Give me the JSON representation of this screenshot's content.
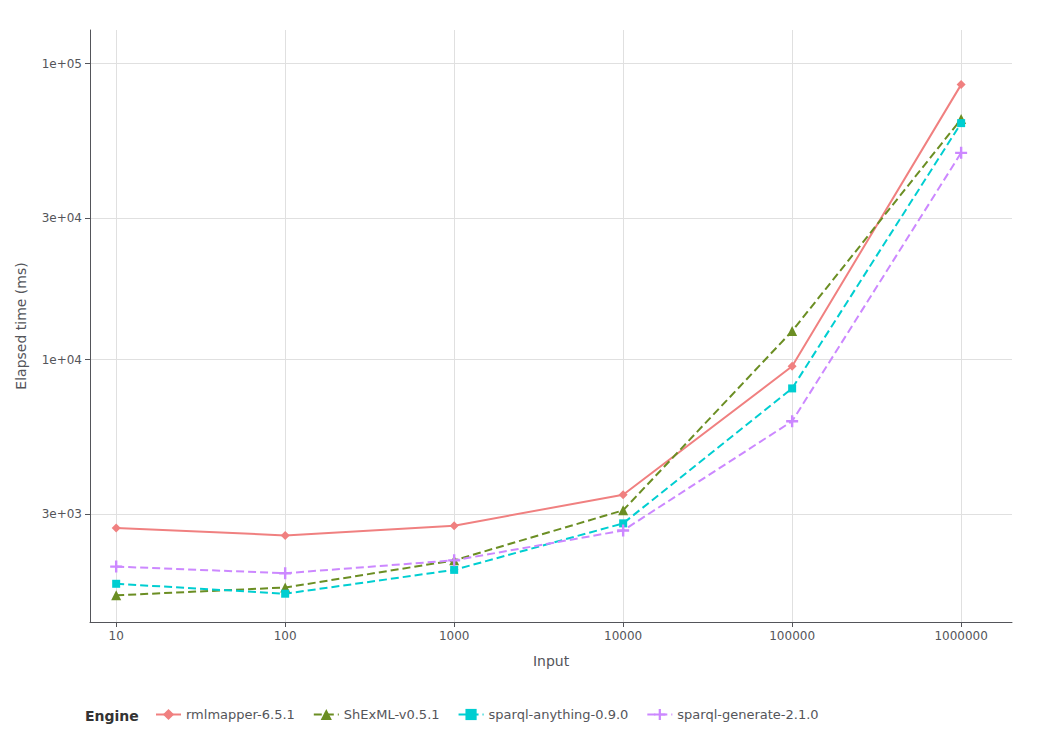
{
  "chart_data": {
    "type": "line",
    "x": [
      10,
      100,
      1000,
      10000,
      100000,
      1000000
    ],
    "series": [
      {
        "name": "rmlmapper-6.5.1",
        "color": "#F08080",
        "line_style": "solid",
        "marker": "diamond",
        "values": [
          2700,
          2550,
          2750,
          3500,
          9500,
          85000
        ]
      },
      {
        "name": "ShExML-v0.5.1",
        "color": "#6B8E23",
        "line_style": "dashed",
        "marker": "triangle",
        "values": [
          1600,
          1700,
          2100,
          3100,
          12500,
          65000
        ]
      },
      {
        "name": "sparql-anything-0.9.0",
        "color": "#00CED1",
        "line_style": "dashed",
        "marker": "square",
        "values": [
          1750,
          1620,
          1950,
          2800,
          8000,
          63000
        ]
      },
      {
        "name": "sparql-generate-2.1.0",
        "color": "#CC88FF",
        "line_style": "dashed",
        "marker": "plus",
        "values": [
          2000,
          1900,
          2100,
          2650,
          6200,
          50000
        ]
      }
    ],
    "xlabel": "Input",
    "ylabel": "Elapsed time (ms)",
    "legend_title": "Engine",
    "legend": "bottom",
    "log": true,
    "grid": true,
    "xlim": [
      7,
      2000000
    ],
    "ylim": [
      1300,
      130000
    ],
    "xticks": [
      10,
      100,
      1000,
      10000,
      100000,
      1000000
    ],
    "yticks": [
      {
        "value": 3000,
        "label": "3e+03"
      },
      {
        "value": 10000,
        "label": "1e+04"
      },
      {
        "value": 30000,
        "label": "3e+04"
      },
      {
        "value": 100000,
        "label": "1e+05"
      }
    ]
  }
}
